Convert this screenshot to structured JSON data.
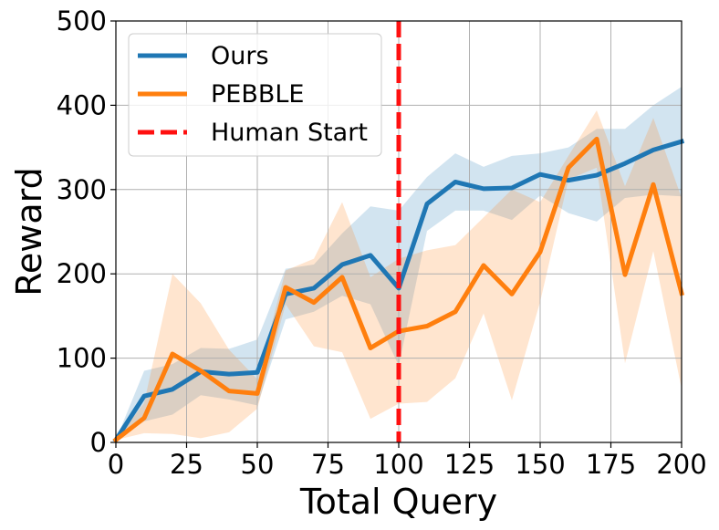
{
  "chart_data": {
    "type": "line",
    "xlabel": "Total Query",
    "ylabel": "Reward",
    "xlim": [
      0,
      200
    ],
    "ylim": [
      0,
      500
    ],
    "xticks": [
      0,
      25,
      50,
      75,
      100,
      125,
      150,
      175,
      200
    ],
    "yticks": [
      0,
      100,
      200,
      300,
      400,
      500
    ],
    "xtick_labels": [
      "0",
      "25",
      "50",
      "75",
      "100",
      "125",
      "150",
      "175",
      "200"
    ],
    "ytick_labels": [
      "0",
      "100",
      "200",
      "300",
      "400",
      "500"
    ],
    "grid": true,
    "legend_position": "top-left",
    "x": [
      0,
      10,
      20,
      30,
      40,
      50,
      60,
      70,
      80,
      90,
      100,
      110,
      120,
      130,
      140,
      150,
      160,
      170,
      180,
      190,
      200
    ],
    "series": [
      {
        "name": "Ours",
        "color": "#1f77b4",
        "band_color": "#1f77b4",
        "values": [
          3,
          55,
          63,
          84,
          81,
          83,
          176,
          183,
          211,
          222,
          183,
          283,
          309,
          301,
          302,
          318,
          311,
          317,
          331,
          347,
          357
        ],
        "upper": [
          3,
          85,
          93,
          112,
          111,
          122,
          206,
          211,
          248,
          280,
          275,
          315,
          343,
          327,
          340,
          343,
          350,
          372,
          372,
          400,
          422
        ],
        "lower": [
          3,
          25,
          33,
          56,
          51,
          44,
          146,
          155,
          174,
          164,
          91,
          251,
          275,
          275,
          264,
          293,
          272,
          262,
          290,
          294,
          292
        ]
      },
      {
        "name": "PEBBLE",
        "color": "#ff7f0e",
        "band_color": "#ff7f0e",
        "values": [
          3,
          29,
          105,
          85,
          61,
          58,
          184,
          166,
          196,
          112,
          132,
          138,
          155,
          210,
          176,
          226,
          326,
          360,
          199,
          306,
          177
        ],
        "upper": [
          3,
          47,
          200,
          165,
          110,
          75,
          204,
          218,
          285,
          196,
          218,
          228,
          234,
          267,
          300,
          285,
          340,
          394,
          304,
          385,
          290
        ],
        "lower": [
          3,
          11,
          10,
          5,
          12,
          40,
          164,
          114,
          107,
          28,
          46,
          48,
          76,
          153,
          50,
          167,
          312,
          326,
          94,
          227,
          64
        ]
      }
    ],
    "vertical_lines": [
      {
        "name": "Human Start",
        "x": 100,
        "color": "#ff1010",
        "style": "dashed"
      }
    ]
  }
}
